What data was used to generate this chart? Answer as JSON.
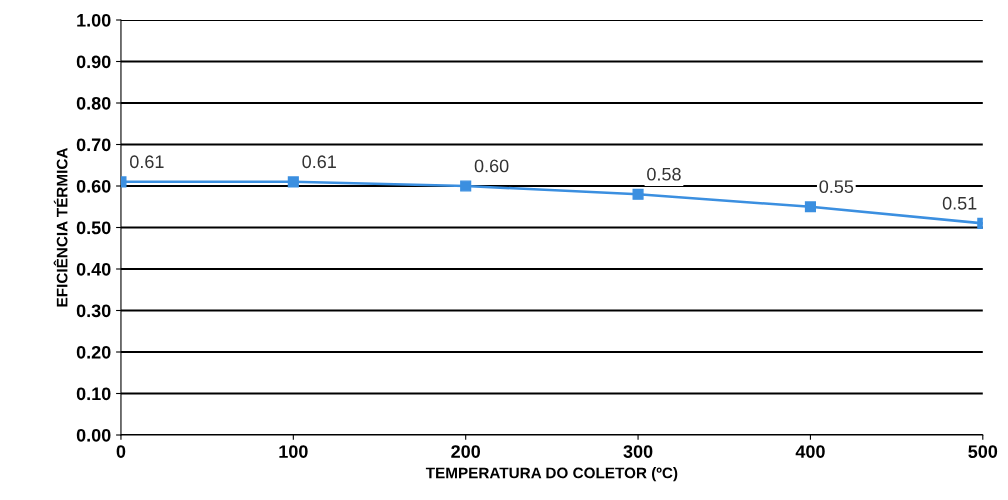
{
  "chart_data": {
    "type": "line",
    "xlabel": "TEMPERATURA DO COLETOR (ºC)",
    "ylabel": "EFICIÊNCIA TÉRMICA",
    "x": [
      0,
      100,
      200,
      300,
      400,
      500
    ],
    "series": [
      {
        "color": "#3b8fe0",
        "values": [
          0.61,
          0.61,
          0.6,
          0.58,
          0.55,
          0.51
        ],
        "value_labels": [
          "0.61",
          "0.61",
          "0.60",
          "0.58",
          "0.55",
          "0.51"
        ]
      }
    ],
    "xlim": [
      0,
      500
    ],
    "xticks": [
      0,
      100,
      200,
      300,
      400,
      500
    ],
    "ylim": [
      0,
      1
    ],
    "yticks": [
      {
        "value": 0,
        "label": "0.00"
      },
      {
        "value": 0.1,
        "label": "0.10"
      },
      {
        "value": 0.2,
        "label": "0.20"
      },
      {
        "value": 0.3,
        "label": "0.30"
      },
      {
        "value": 0.4,
        "label": "0.40"
      },
      {
        "value": 0.5,
        "label": "0.50"
      },
      {
        "value": 0.6,
        "label": "0.60"
      },
      {
        "value": 0.7,
        "label": "0.70"
      },
      {
        "value": 0.8,
        "label": "0.80"
      },
      {
        "value": 0.9,
        "label": "0.90"
      },
      {
        "value": 1,
        "label": "1.00"
      }
    ],
    "grid": "y",
    "marker": "square",
    "line_style": "solid"
  }
}
